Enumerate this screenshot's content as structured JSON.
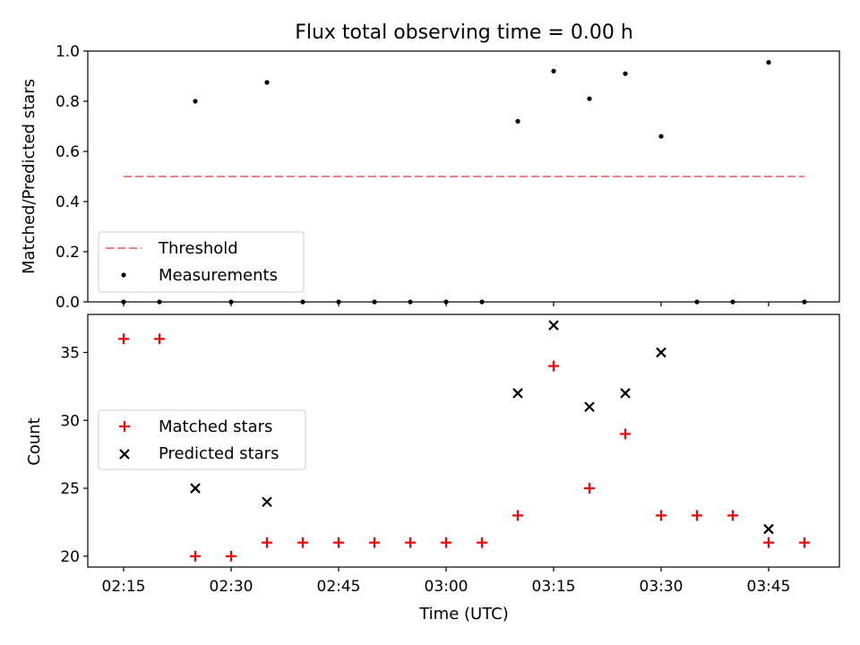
{
  "chart_data": [
    {
      "type": "scatter",
      "title": "Flux total observing time = 0.00 h",
      "ylabel": "Matched/Predicted stars",
      "ylim": [
        0.0,
        1.0
      ],
      "yticks": [
        "0.0",
        "0.2",
        "0.4",
        "0.6",
        "0.8",
        "1.0"
      ],
      "legend_position": "lower-left",
      "threshold": {
        "name": "Threshold",
        "value": 0.5,
        "x_range": [
          "02:15",
          "03:50"
        ],
        "color": "#f08080",
        "style": "dashed"
      },
      "series": [
        {
          "name": "Measurements",
          "marker": "dot",
          "color": "#000000",
          "points": [
            {
              "x": "02:15",
              "y": 0.0
            },
            {
              "x": "02:20",
              "y": 0.0
            },
            {
              "x": "02:25",
              "y": 0.8
            },
            {
              "x": "02:30",
              "y": 0.0
            },
            {
              "x": "02:35",
              "y": 0.875
            },
            {
              "x": "02:40",
              "y": 0.0
            },
            {
              "x": "02:45",
              "y": 0.0
            },
            {
              "x": "02:50",
              "y": 0.0
            },
            {
              "x": "02:55",
              "y": 0.0
            },
            {
              "x": "03:00",
              "y": 0.0
            },
            {
              "x": "03:05",
              "y": 0.0
            },
            {
              "x": "03:10",
              "y": 0.72
            },
            {
              "x": "03:15",
              "y": 0.92
            },
            {
              "x": "03:20",
              "y": 0.81
            },
            {
              "x": "03:25",
              "y": 0.91
            },
            {
              "x": "03:30",
              "y": 0.66
            },
            {
              "x": "03:35",
              "y": 0.0
            },
            {
              "x": "03:40",
              "y": 0.0
            },
            {
              "x": "03:45",
              "y": 0.955
            },
            {
              "x": "03:50",
              "y": 0.0
            }
          ]
        }
      ]
    },
    {
      "type": "scatter",
      "ylabel": "Count",
      "xlabel": "Time (UTC)",
      "ylim": [
        19.2,
        37.8
      ],
      "yticks": [
        "20",
        "25",
        "30",
        "35"
      ],
      "xticks": [
        "02:15",
        "02:30",
        "02:45",
        "03:00",
        "03:15",
        "03:30",
        "03:45"
      ],
      "legend_position": "center-left",
      "series": [
        {
          "name": "Matched stars",
          "marker": "plus",
          "color": "#ff0000",
          "points": [
            {
              "x": "02:15",
              "y": 36
            },
            {
              "x": "02:20",
              "y": 36
            },
            {
              "x": "02:25",
              "y": 20
            },
            {
              "x": "02:30",
              "y": 20
            },
            {
              "x": "02:35",
              "y": 21
            },
            {
              "x": "02:40",
              "y": 21
            },
            {
              "x": "02:45",
              "y": 21
            },
            {
              "x": "02:50",
              "y": 21
            },
            {
              "x": "02:55",
              "y": 21
            },
            {
              "x": "03:00",
              "y": 21
            },
            {
              "x": "03:05",
              "y": 21
            },
            {
              "x": "03:10",
              "y": 23
            },
            {
              "x": "03:15",
              "y": 34
            },
            {
              "x": "03:20",
              "y": 25
            },
            {
              "x": "03:25",
              "y": 29
            },
            {
              "x": "03:30",
              "y": 23
            },
            {
              "x": "03:35",
              "y": 23
            },
            {
              "x": "03:40",
              "y": 23
            },
            {
              "x": "03:45",
              "y": 21
            },
            {
              "x": "03:50",
              "y": 21
            }
          ]
        },
        {
          "name": "Predicted stars",
          "marker": "x",
          "color": "#000000",
          "points": [
            {
              "x": "02:25",
              "y": 25
            },
            {
              "x": "02:35",
              "y": 24
            },
            {
              "x": "03:10",
              "y": 32
            },
            {
              "x": "03:15",
              "y": 37
            },
            {
              "x": "03:20",
              "y": 31
            },
            {
              "x": "03:25",
              "y": 32
            },
            {
              "x": "03:30",
              "y": 35
            },
            {
              "x": "03:45",
              "y": 22
            }
          ]
        }
      ]
    }
  ]
}
